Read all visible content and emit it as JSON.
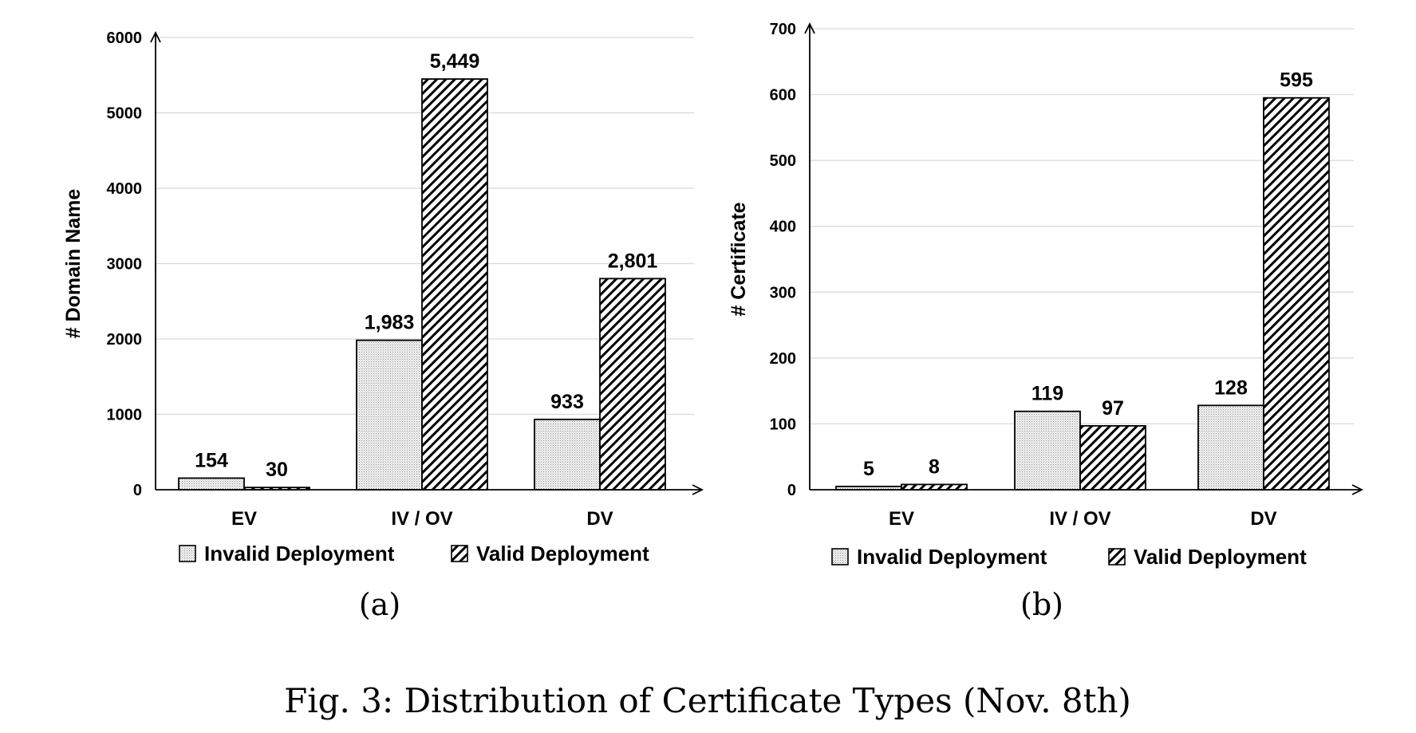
{
  "figure": {
    "caption": "Fig. 3: Distribution of Certificate Types (Nov. 8th)"
  },
  "chart_data": [
    {
      "type": "bar",
      "panel_label": "(a)",
      "title": "",
      "xlabel": "",
      "ylabel": "# Domain Name",
      "categories": [
        "EV",
        "IV / OV",
        "DV"
      ],
      "series": [
        {
          "name": "Invalid Deployment",
          "values": [
            154,
            1983,
            933
          ],
          "labels": [
            "154",
            "1,983",
            "933"
          ]
        },
        {
          "name": "Valid Deployment",
          "values": [
            30,
            5449,
            2801
          ],
          "labels": [
            "30",
            "5,449",
            "2,801"
          ]
        }
      ],
      "ylim": [
        0,
        6000
      ],
      "yticks": [
        0,
        1000,
        2000,
        3000,
        4000,
        5000,
        6000
      ],
      "grid": true,
      "legend_position": "bottom"
    },
    {
      "type": "bar",
      "panel_label": "(b)",
      "title": "",
      "xlabel": "",
      "ylabel": "# Certificate",
      "categories": [
        "EV",
        "IV / OV",
        "DV"
      ],
      "series": [
        {
          "name": "Invalid Deployment",
          "values": [
            5,
            119,
            128
          ],
          "labels": [
            "5",
            "119",
            "128"
          ]
        },
        {
          "name": "Valid Deployment",
          "values": [
            8,
            97,
            595
          ],
          "labels": [
            "8",
            "97",
            "595"
          ]
        }
      ],
      "ylim": [
        0,
        700
      ],
      "yticks": [
        0,
        100,
        200,
        300,
        400,
        500,
        600,
        700
      ],
      "grid": true,
      "legend_position": "bottom"
    }
  ]
}
